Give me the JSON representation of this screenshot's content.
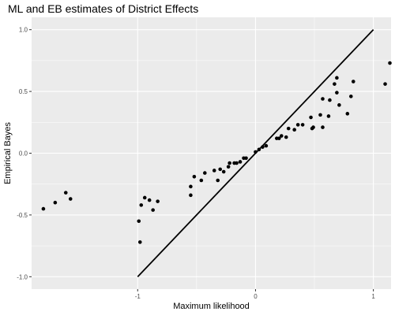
{
  "chart_data": {
    "type": "scatter",
    "title": "ML and EB estimates of District Effects",
    "xlabel": "Maximum likelihood",
    "ylabel": "Empirical Bayes",
    "xlim": [
      -1.9,
      1.15
    ],
    "ylim": [
      -1.1,
      1.1
    ],
    "x_ticks": [
      -1,
      0,
      1
    ],
    "x_tick_labels": [
      "-1",
      "0",
      "1"
    ],
    "y_ticks": [
      -1.0,
      -0.5,
      0.0,
      0.5,
      1.0
    ],
    "y_tick_labels": [
      "-1.0",
      "-0.5",
      "0.0",
      "0.5",
      "1.0"
    ],
    "grid": true,
    "background": "#ebebeb",
    "grid_color": "#ffffff",
    "point_color": "#000000",
    "reference_line": {
      "from": [
        -1,
        -1
      ],
      "to": [
        1,
        1
      ]
    },
    "points": [
      {
        "x": -1.8,
        "y": -0.45
      },
      {
        "x": -1.7,
        "y": -0.4
      },
      {
        "x": -1.61,
        "y": -0.32
      },
      {
        "x": -1.57,
        "y": -0.37
      },
      {
        "x": -0.98,
        "y": -0.72
      },
      {
        "x": -0.99,
        "y": -0.55
      },
      {
        "x": -0.97,
        "y": -0.42
      },
      {
        "x": -0.94,
        "y": -0.36
      },
      {
        "x": -0.9,
        "y": -0.38
      },
      {
        "x": -0.87,
        "y": -0.46
      },
      {
        "x": -0.83,
        "y": -0.39
      },
      {
        "x": -0.55,
        "y": -0.34
      },
      {
        "x": -0.55,
        "y": -0.27
      },
      {
        "x": -0.52,
        "y": -0.19
      },
      {
        "x": -0.46,
        "y": -0.22
      },
      {
        "x": -0.43,
        "y": -0.16
      },
      {
        "x": -0.35,
        "y": -0.14
      },
      {
        "x": -0.32,
        "y": -0.22
      },
      {
        "x": -0.3,
        "y": -0.13
      },
      {
        "x": -0.27,
        "y": -0.15
      },
      {
        "x": -0.23,
        "y": -0.11
      },
      {
        "x": -0.22,
        "y": -0.08
      },
      {
        "x": -0.18,
        "y": -0.08
      },
      {
        "x": -0.16,
        "y": -0.08
      },
      {
        "x": -0.13,
        "y": -0.07
      },
      {
        "x": -0.1,
        "y": -0.04
      },
      {
        "x": -0.08,
        "y": -0.04
      },
      {
        "x": 0.0,
        "y": 0.01
      },
      {
        "x": 0.03,
        "y": 0.03
      },
      {
        "x": 0.06,
        "y": 0.05
      },
      {
        "x": 0.09,
        "y": 0.06
      },
      {
        "x": 0.18,
        "y": 0.12
      },
      {
        "x": 0.2,
        "y": 0.12
      },
      {
        "x": 0.22,
        "y": 0.14
      },
      {
        "x": 0.26,
        "y": 0.13
      },
      {
        "x": 0.28,
        "y": 0.2
      },
      {
        "x": 0.33,
        "y": 0.19
      },
      {
        "x": 0.36,
        "y": 0.23
      },
      {
        "x": 0.4,
        "y": 0.23
      },
      {
        "x": 0.47,
        "y": 0.29
      },
      {
        "x": 0.48,
        "y": 0.2
      },
      {
        "x": 0.49,
        "y": 0.21
      },
      {
        "x": 0.55,
        "y": 0.31
      },
      {
        "x": 0.57,
        "y": 0.44
      },
      {
        "x": 0.57,
        "y": 0.21
      },
      {
        "x": 0.62,
        "y": 0.3
      },
      {
        "x": 0.63,
        "y": 0.43
      },
      {
        "x": 0.67,
        "y": 0.56
      },
      {
        "x": 0.69,
        "y": 0.61
      },
      {
        "x": 0.69,
        "y": 0.49
      },
      {
        "x": 0.71,
        "y": 0.39
      },
      {
        "x": 0.78,
        "y": 0.32
      },
      {
        "x": 0.81,
        "y": 0.46
      },
      {
        "x": 0.83,
        "y": 0.58
      },
      {
        "x": 1.1,
        "y": 0.56
      },
      {
        "x": 1.14,
        "y": 0.73
      }
    ]
  }
}
